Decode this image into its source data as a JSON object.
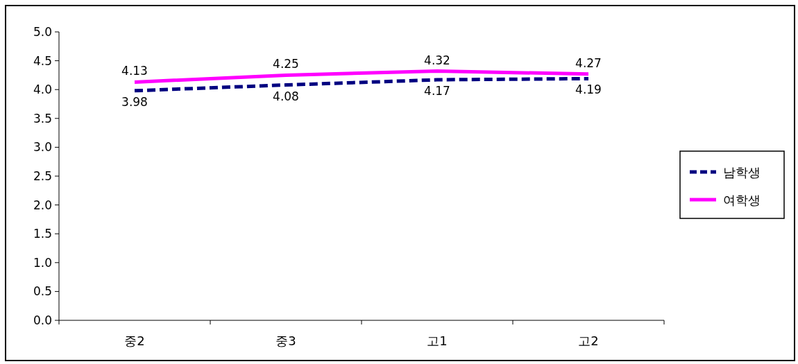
{
  "chart_data": {
    "type": "line",
    "categories": [
      "중2",
      "중3",
      "고1",
      "고2"
    ],
    "series": [
      {
        "name": "남학생",
        "color": "#000080",
        "line_style": "dashed",
        "values": [
          3.98,
          4.08,
          4.17,
          4.19
        ]
      },
      {
        "name": "여학생",
        "color": "#ff00ff",
        "line_style": "solid",
        "values": [
          4.13,
          4.25,
          4.32,
          4.27
        ]
      }
    ],
    "ylim": [
      0,
      5
    ],
    "yticks": [
      {
        "value": 0,
        "label": "0.0"
      },
      {
        "value": 0.5,
        "label": "0.5"
      },
      {
        "value": 1,
        "label": "1.0"
      },
      {
        "value": 1.5,
        "label": "1.5"
      },
      {
        "value": 2,
        "label": "2.0"
      },
      {
        "value": 2.5,
        "label": "2.5"
      },
      {
        "value": 3,
        "label": "3.0"
      },
      {
        "value": 3.5,
        "label": "3.5"
      },
      {
        "value": 4,
        "label": "4.0"
      },
      {
        "value": 4.5,
        "label": "4.5"
      },
      {
        "value": 5,
        "label": "5.0"
      }
    ],
    "data_labels": true,
    "legend": "right",
    "grid": false,
    "marker": "none"
  }
}
